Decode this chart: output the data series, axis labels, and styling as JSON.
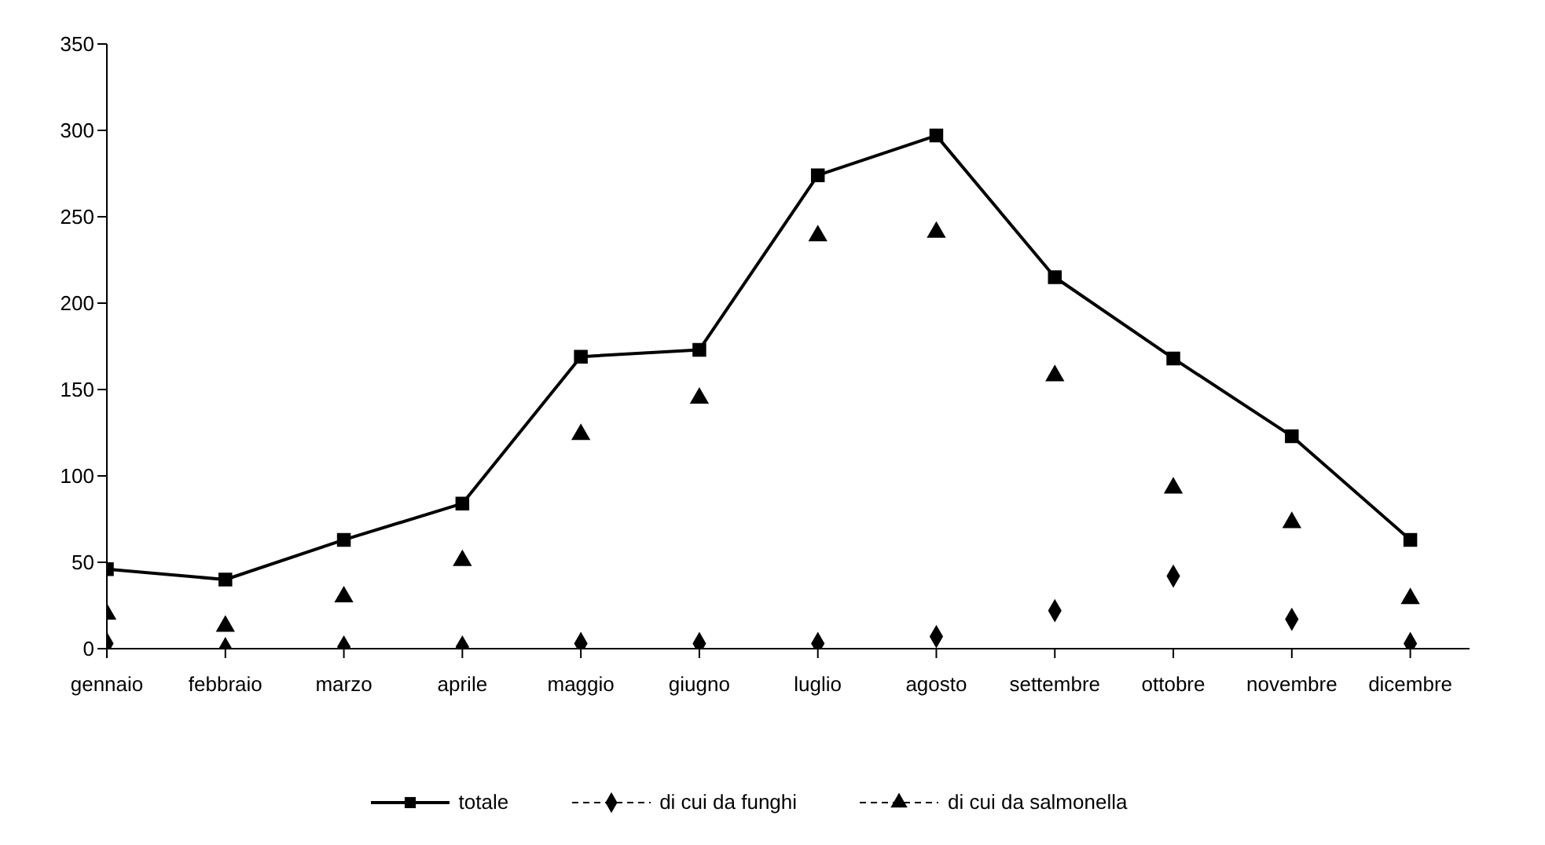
{
  "chart_data": {
    "type": "line",
    "categories": [
      "gennaio",
      "febbraio",
      "marzo",
      "aprile",
      "maggio",
      "giugno",
      "luglio",
      "agosto",
      "settembre",
      "ottobre",
      "novembre",
      "dicembre"
    ],
    "series": [
      {
        "name": "totale",
        "color": "#000000",
        "marker": "square",
        "line_style": "solid",
        "values": [
          46,
          40,
          63,
          84,
          169,
          173,
          274,
          297,
          215,
          168,
          123,
          63
        ]
      },
      {
        "name": "di cui da funghi",
        "type": "scatter",
        "color": "#000000",
        "marker": "diamond",
        "line_style": "dashed",
        "values": [
          3,
          0,
          1,
          1,
          3,
          3,
          3,
          7,
          22,
          42,
          17,
          3
        ]
      },
      {
        "name": "di cui da salmonella",
        "type": "scatter",
        "color": "#000000",
        "marker": "triangle",
        "line_style": "dashed",
        "values": [
          20,
          13,
          30,
          51,
          124,
          145,
          239,
          241,
          158,
          93,
          73,
          29
        ]
      }
    ],
    "ylim": [
      0,
      350
    ],
    "yticks": [
      0,
      50,
      100,
      150,
      200,
      250,
      300,
      350
    ],
    "grid": false,
    "legend": "bottom"
  }
}
